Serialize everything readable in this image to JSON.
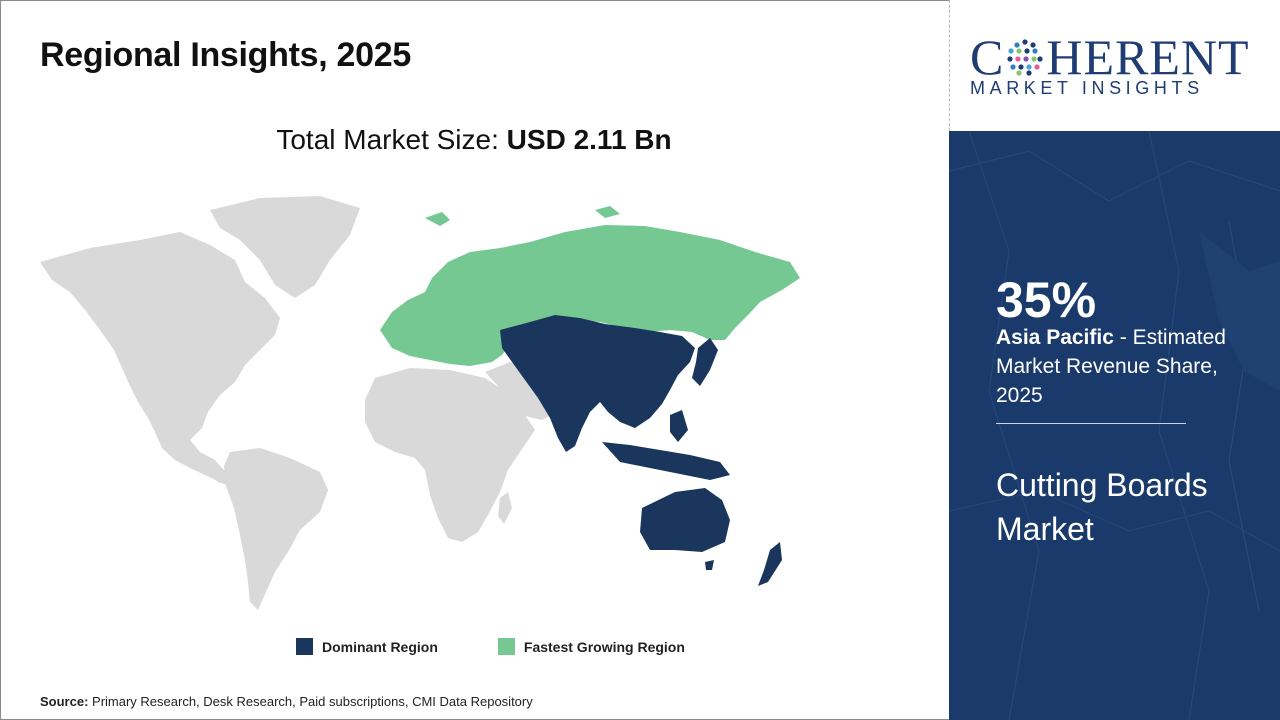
{
  "header": {
    "title": "Regional Insights, 2025"
  },
  "market_size": {
    "label": "Total Market Size:",
    "value": "USD 2.11 Bn"
  },
  "legend": {
    "dominant": {
      "label": "Dominant Region",
      "color": "#1b365d"
    },
    "fastest": {
      "label": "Fastest Growing Region",
      "color": "#76c893"
    }
  },
  "map": {
    "other_color": "#d9d9d9",
    "dominant_region": "Asia Pacific",
    "fastest_growing_region": "Europe & Russia"
  },
  "source": {
    "label": "Source:",
    "text": "Primary Research, Desk Research, Paid subscriptions, CMI Data Repository"
  },
  "logo": {
    "letter_c": "C",
    "rest": "HERENT",
    "sub": "MARKET INSIGHTS",
    "color": "#1f3c73"
  },
  "panel": {
    "background": "#1a3a6b",
    "stat": "35%",
    "region": "Asia Pacific",
    "desc": " - Estimated Market Revenue Share, 2025",
    "market_name": "Cutting Boards Market"
  }
}
